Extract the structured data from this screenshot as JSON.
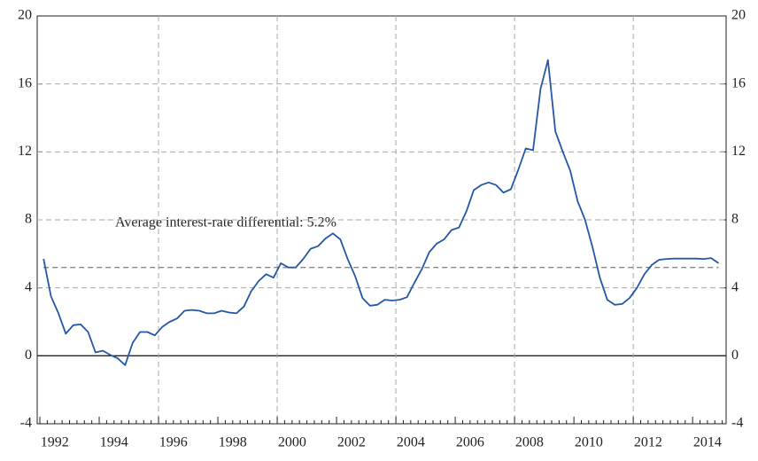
{
  "chart_data": {
    "type": "line",
    "annotation": "Average interest-rate differential: 5.2%",
    "average_line": 5.2,
    "x": [
      1992.125,
      1992.375,
      1992.625,
      1992.875,
      1993.125,
      1993.375,
      1993.625,
      1993.875,
      1994.125,
      1994.375,
      1994.625,
      1994.875,
      1995.125,
      1995.375,
      1995.625,
      1995.875,
      1996.125,
      1996.375,
      1996.625,
      1996.875,
      1997.125,
      1997.375,
      1997.625,
      1997.875,
      1998.125,
      1998.375,
      1998.625,
      1998.875,
      1999.125,
      1999.375,
      1999.625,
      1999.875,
      2000.125,
      2000.375,
      2000.625,
      2000.875,
      2001.125,
      2001.375,
      2001.625,
      2001.875,
      2002.125,
      2002.375,
      2002.625,
      2002.875,
      2003.125,
      2003.375,
      2003.625,
      2003.875,
      2004.125,
      2004.375,
      2004.625,
      2004.875,
      2005.125,
      2005.375,
      2005.625,
      2005.875,
      2006.125,
      2006.375,
      2006.625,
      2006.875,
      2007.125,
      2007.375,
      2007.625,
      2007.875,
      2008.125,
      2008.375,
      2008.625,
      2008.875,
      2009.125,
      2009.375,
      2009.625,
      2009.875,
      2010.125,
      2010.375,
      2010.625,
      2010.875,
      2011.125,
      2011.375,
      2011.625,
      2011.875,
      2012.125,
      2012.375,
      2012.625,
      2012.875,
      2013.125,
      2013.375,
      2013.625,
      2013.875,
      2014.125,
      2014.375,
      2014.625,
      2014.875
    ],
    "series": [
      {
        "color": "#2457a6",
        "values": [
          5.7,
          3.5,
          2.5,
          1.3,
          1.8,
          1.85,
          1.4,
          0.2,
          0.3,
          0.05,
          -0.15,
          -0.55,
          0.75,
          1.4,
          1.4,
          1.2,
          1.7,
          2.0,
          2.2,
          2.65,
          2.7,
          2.65,
          2.5,
          2.5,
          2.65,
          2.55,
          2.5,
          2.9,
          3.8,
          4.4,
          4.8,
          4.6,
          5.45,
          5.2,
          5.2,
          5.7,
          6.3,
          6.45,
          6.9,
          7.2,
          6.85,
          5.7,
          4.7,
          3.4,
          2.95,
          3.0,
          3.3,
          3.25,
          3.3,
          3.45,
          4.3,
          5.1,
          6.1,
          6.6,
          6.85,
          7.4,
          7.55,
          8.5,
          9.75,
          10.05,
          10.2,
          10.05,
          9.6,
          9.8,
          10.95,
          12.2,
          12.1,
          15.7,
          17.4,
          13.2,
          12.0,
          10.9,
          9.1,
          8.0,
          6.4,
          4.6,
          3.3,
          3.0,
          3.05,
          3.4,
          4.0,
          4.8,
          5.35,
          5.65,
          5.7,
          5.72,
          5.72,
          5.72,
          5.72,
          5.7,
          5.75,
          5.45
        ]
      }
    ],
    "xlim": [
      1991.91,
      2015.13
    ],
    "xticks": [
      1992,
      1994,
      1996,
      1998,
      2000,
      2002,
      2004,
      2006,
      2008,
      2010,
      2012,
      2014
    ],
    "xgrid": [
      1996,
      2000,
      2004,
      2008,
      2012
    ],
    "ylim": [
      -4,
      20
    ],
    "yticks": [
      -4,
      0,
      4,
      8,
      12,
      16,
      20
    ],
    "grid": true
  }
}
